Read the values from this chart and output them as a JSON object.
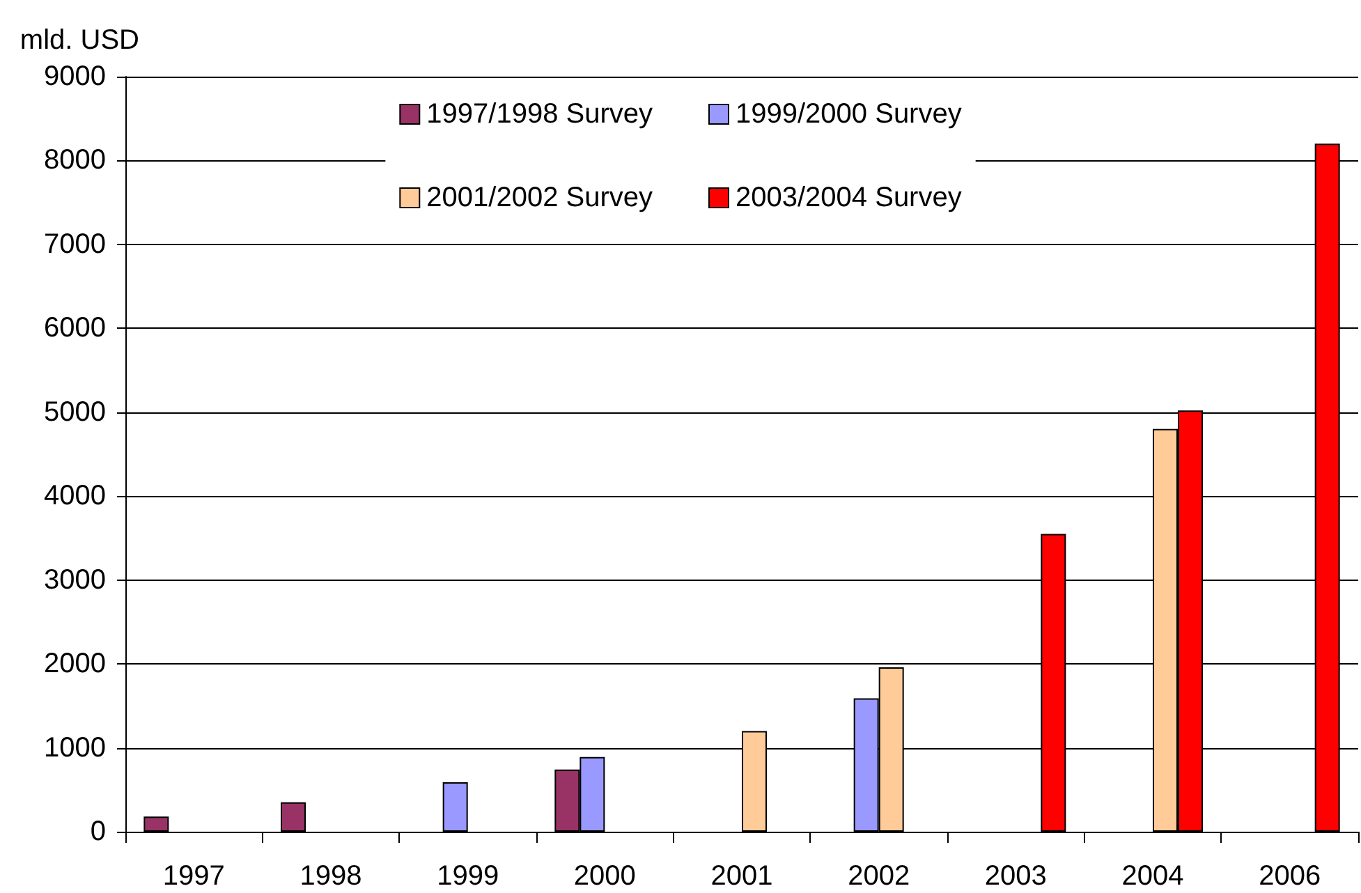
{
  "chart_data": {
    "type": "bar",
    "ylabel": "mld. USD",
    "categories": [
      "1997",
      "1998",
      "1999",
      "2000",
      "2001",
      "2002",
      "2003",
      "2004",
      "2006"
    ],
    "series": [
      {
        "name": "1997/1998 Survey",
        "color": "#993366",
        "values": [
          180,
          350,
          null,
          740,
          null,
          null,
          null,
          null,
          null
        ]
      },
      {
        "name": "1999/2000 Survey",
        "color": "#9999ff",
        "values": [
          null,
          null,
          590,
          890,
          null,
          1590,
          null,
          null,
          null
        ]
      },
      {
        "name": "2001/2002 Survey",
        "color": "#ffcc99",
        "values": [
          null,
          null,
          null,
          null,
          1200,
          1960,
          null,
          4800,
          null
        ]
      },
      {
        "name": "2003/2004 Survey",
        "color": "#ff0000",
        "values": [
          null,
          null,
          null,
          null,
          null,
          null,
          3550,
          5020,
          8200
        ]
      }
    ],
    "ylim": [
      0,
      9000
    ],
    "yticks": [
      0,
      1000,
      2000,
      3000,
      4000,
      5000,
      6000,
      7000,
      8000,
      9000
    ],
    "grid": "y",
    "legend": "top"
  }
}
